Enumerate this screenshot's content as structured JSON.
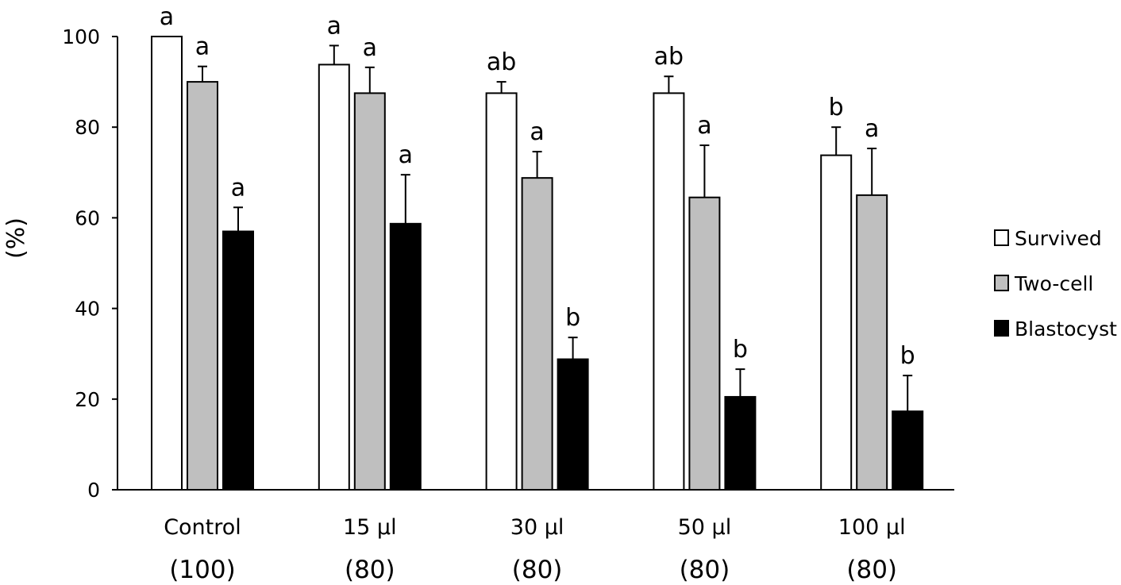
{
  "chart_data": {
    "type": "bar",
    "title": "",
    "xlabel": "",
    "ylabel": "(%)",
    "ylim": [
      0,
      100
    ],
    "yticks": [
      0,
      20,
      40,
      60,
      80,
      100
    ],
    "grid": false,
    "legend_position": "right",
    "categories": [
      {
        "label": "Control",
        "n": "(100)"
      },
      {
        "label": "15 µl",
        "n": "(80)"
      },
      {
        "label": "30 µl",
        "n": "(80)"
      },
      {
        "label": "50 µl",
        "n": "(80)"
      },
      {
        "label": "100 µl",
        "n": "(80)"
      }
    ],
    "series": [
      {
        "name": "Survived",
        "color": "#ffffff",
        "values": [
          100,
          93.8,
          87.5,
          87.5,
          73.8
        ],
        "errors": [
          0,
          4.2,
          2.5,
          3.7,
          6.2
        ],
        "letters": [
          "a",
          "a",
          "ab",
          "ab",
          "b"
        ]
      },
      {
        "name": "Two-cell",
        "color": "#bfbfbf",
        "values": [
          90,
          87.5,
          68.8,
          64.5,
          65
        ],
        "errors": [
          3.4,
          5.7,
          5.8,
          11.5,
          10.3
        ],
        "letters": [
          "a",
          "a",
          "a",
          "a",
          "a"
        ]
      },
      {
        "name": "Blastocyst",
        "color": "#000000",
        "values": [
          57,
          58.7,
          28.8,
          20.5,
          17.3
        ],
        "errors": [
          5.3,
          10.8,
          4.8,
          6.1,
          7.9
        ],
        "letters": [
          "a",
          "a",
          "b",
          "b",
          "b"
        ]
      }
    ]
  }
}
